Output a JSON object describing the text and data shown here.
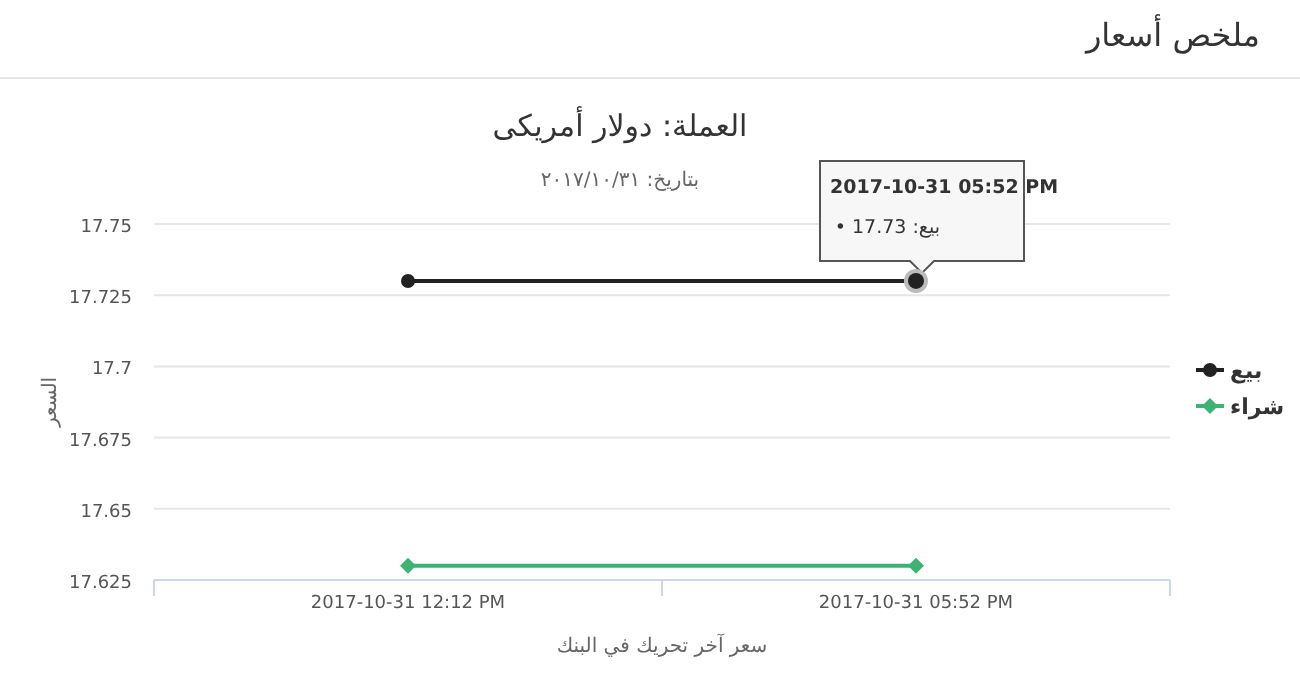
{
  "chart_data": {
    "type": "line",
    "title": "العملة: دولار أمريكى",
    "subtitle": "بتاريخ: ٢٠١٧/١٠/٣١",
    "xlabel": "سعر آخر تحريك في البنك",
    "ylabel": "السعر",
    "categories": [
      "2017-10-31 12:12 PM",
      "2017-10-31 05:52 PM"
    ],
    "series": [
      {
        "name": "بيع",
        "color": "#222222",
        "marker": "circle",
        "values": [
          17.73,
          17.73
        ]
      },
      {
        "name": "شراء",
        "color": "#3cb371",
        "marker": "diamond",
        "values": [
          17.63,
          17.63
        ]
      }
    ],
    "ylim": [
      17.625,
      17.75
    ],
    "yticks": [
      17.625,
      17.65,
      17.675,
      17.7,
      17.725,
      17.75
    ],
    "grid": "y",
    "legend": "right",
    "annotations": [
      "ملخص أسعار",
      "2017-10-31 05:52 PM",
      "بيع: 17.73 •"
    ]
  }
}
